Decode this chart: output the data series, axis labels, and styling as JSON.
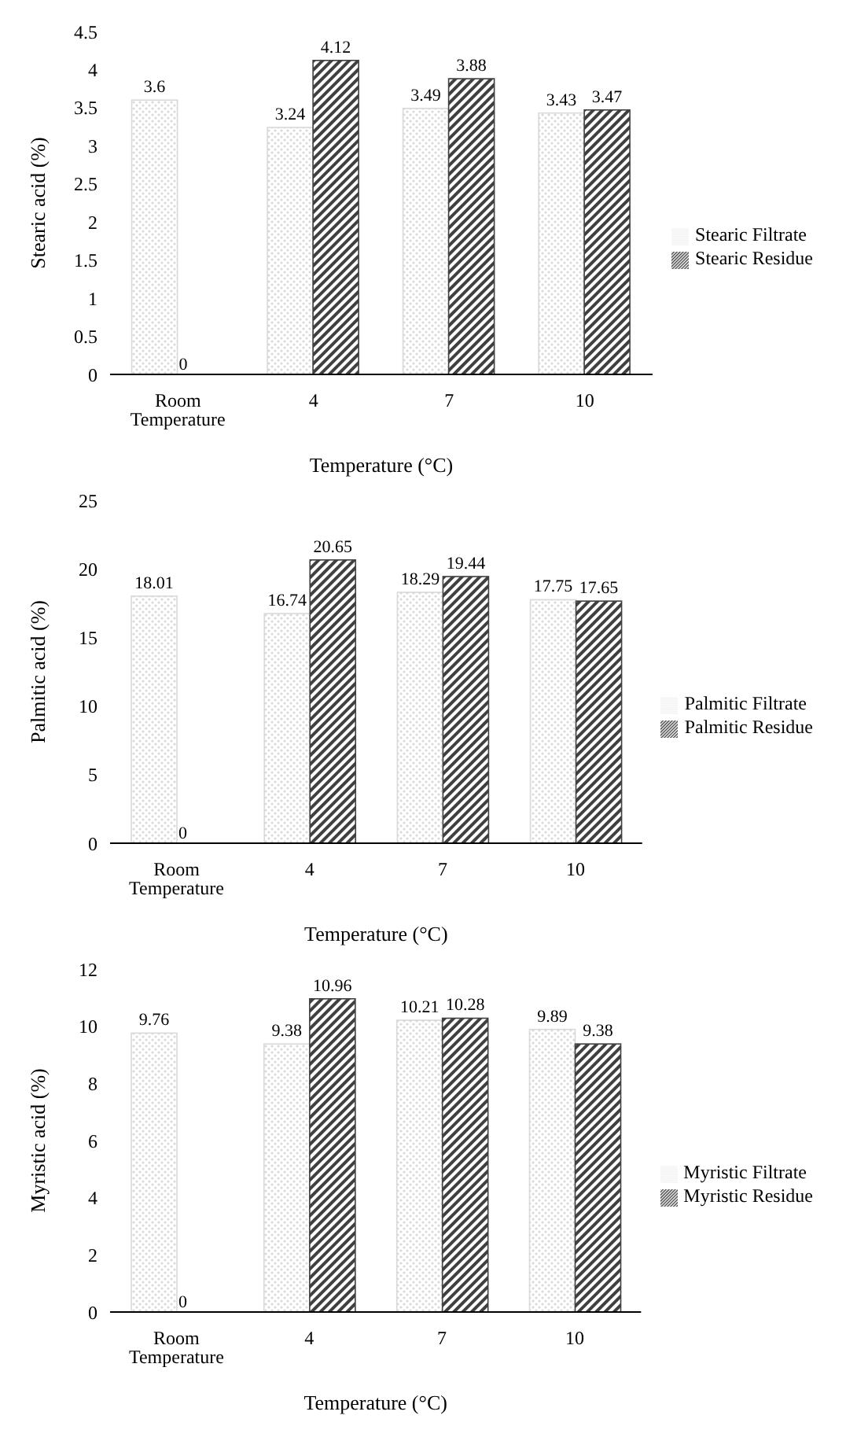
{
  "chart_data": [
    {
      "type": "bar",
      "xlabel": "Temperature (°C)",
      "ylabel": "Stearic acid (%)",
      "categories": [
        "Room Temperature",
        "4",
        "7",
        "10"
      ],
      "series": [
        {
          "name": "Stearic Filtrate",
          "color": "#d9d9d9",
          "values": [
            3.6,
            3.24,
            3.49,
            3.43
          ]
        },
        {
          "name": "Stearic Residue",
          "color": "#404040",
          "values": [
            0,
            4.12,
            3.88,
            3.47
          ]
        }
      ],
      "ylim": [
        0,
        4.5
      ],
      "yticks": [
        0,
        0.5,
        1,
        1.5,
        2,
        2.5,
        3,
        3.5,
        4,
        4.5
      ],
      "data_labels": true,
      "legend": "right",
      "grid": false
    },
    {
      "type": "bar",
      "xlabel": "Temperature (°C)",
      "ylabel": "Palmitic acid (%)",
      "categories": [
        "Room Temperature",
        "4",
        "7",
        "10"
      ],
      "series": [
        {
          "name": "Palmitic Filtrate",
          "color": "#d9d9d9",
          "values": [
            18.01,
            16.74,
            18.29,
            17.75
          ]
        },
        {
          "name": "Palmitic Residue",
          "color": "#404040",
          "values": [
            0,
            20.65,
            19.44,
            17.65
          ]
        }
      ],
      "ylim": [
        0,
        25
      ],
      "yticks": [
        0,
        5,
        10,
        15,
        20,
        25
      ],
      "data_labels": true,
      "legend": "right",
      "grid": false
    },
    {
      "type": "bar",
      "xlabel": "Temperature (°C)",
      "ylabel": "Myristic acid (%)",
      "categories": [
        "Room Temperature",
        "4",
        "7",
        "10"
      ],
      "series": [
        {
          "name": "Myristic Filtrate",
          "color": "#d9d9d9",
          "values": [
            9.76,
            9.38,
            10.21,
            9.89
          ]
        },
        {
          "name": "Myristic Residue",
          "color": "#404040",
          "values": [
            0,
            10.96,
            10.28,
            9.38
          ]
        }
      ],
      "ylim": [
        0,
        12
      ],
      "yticks": [
        0,
        2,
        4,
        6,
        8,
        10,
        12
      ],
      "data_labels": true,
      "legend": "right",
      "grid": false
    }
  ]
}
